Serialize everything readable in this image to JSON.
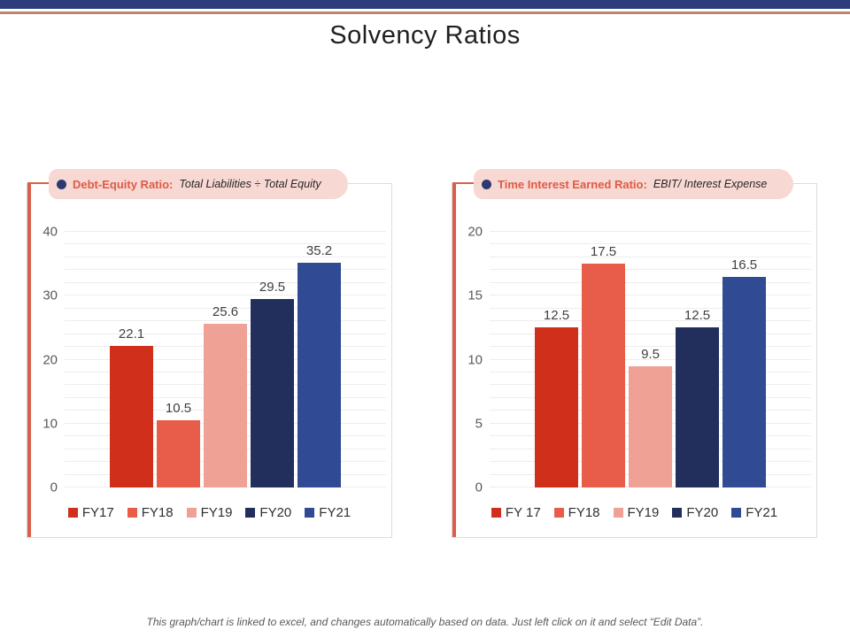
{
  "slide": {
    "title": "Solvency Ratios",
    "footnote": "This graph/chart is linked to excel, and changes automatically based on data. Just left click on it and select “Edit Data”.",
    "accent_colors": {
      "top_bar": "#2e3c7c",
      "top_underline": "#bd8374",
      "card_accent": "#d95f4c",
      "pill_background": "#f8d8d2",
      "pill_title": "#de5b47",
      "bullet": "#2c3a70"
    }
  },
  "chart_data": [
    {
      "type": "bar",
      "title_bold": "Debt-Equity Ratio:",
      "title_italic": "Total Liabilities ÷ Total Equity",
      "categories": [
        "FY17",
        "FY18",
        "FY19",
        "FY20",
        "FY21"
      ],
      "values": [
        22.1,
        10.5,
        25.6,
        29.5,
        35.2
      ],
      "value_labels": [
        "22.1",
        "10.5",
        "25.6",
        "29.5",
        "35.2"
      ],
      "bar_colors": [
        "#d0301b",
        "#e85d49",
        "#f0a195",
        "#222e5c",
        "#304a94"
      ],
      "legend": [
        "FY17",
        "FY18",
        "FY19",
        "FY20",
        "FY21"
      ],
      "ylim": [
        0,
        40
      ],
      "yticks": [
        0,
        10,
        20,
        30,
        40
      ],
      "minor_step": 2,
      "grid": "horizontal",
      "legend_position": "bottom"
    },
    {
      "type": "bar",
      "title_bold": "Time Interest Earned Ratio:",
      "title_italic": "EBIT/ Interest Expense",
      "categories": [
        "FY 17",
        "FY18",
        "FY19",
        "FY20",
        "FY21"
      ],
      "values": [
        12.5,
        17.5,
        9.5,
        12.5,
        16.5
      ],
      "value_labels": [
        "12.5",
        "17.5",
        "9.5",
        "12.5",
        "16.5"
      ],
      "bar_colors": [
        "#d0301b",
        "#e85d49",
        "#f0a195",
        "#222e5c",
        "#304a94"
      ],
      "legend": [
        "FY 17",
        "FY18",
        "FY19",
        "FY20",
        "FY21"
      ],
      "ylim": [
        0,
        20
      ],
      "yticks": [
        0,
        5,
        10,
        15,
        20
      ],
      "minor_step": 1,
      "grid": "horizontal",
      "legend_position": "bottom"
    }
  ]
}
